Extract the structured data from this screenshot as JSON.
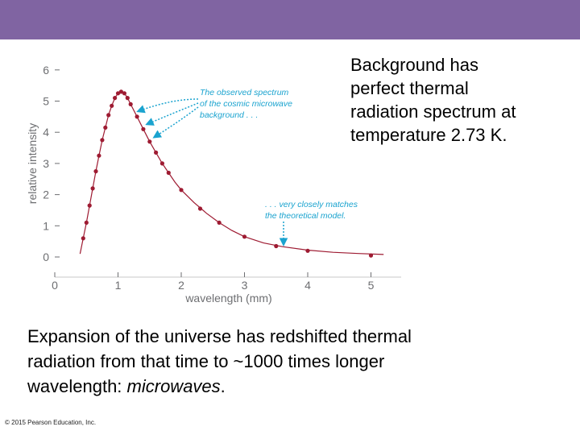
{
  "header": {
    "bar_color": "#8064a2"
  },
  "side_text": {
    "lines": [
      "Background has",
      "perfect thermal",
      "radiation spectrum at",
      "temperature 2.73 K."
    ]
  },
  "bottom_text": {
    "line1": "Expansion of the universe has redshifted thermal",
    "line2": "radiation from that time to ~1000 times longer",
    "line3_start": "wavelength: ",
    "line3_em": "microwaves",
    "line3_end": "."
  },
  "footer": {
    "copyright": "© 2015 Pearson Education, Inc."
  },
  "chart_data": {
    "type": "scatter",
    "xlabel": "wavelength (mm)",
    "ylabel": "relative intensity",
    "xlim": [
      0,
      5.5
    ],
    "ylim": [
      0,
      6
    ],
    "x_ticks": [
      "0",
      "1",
      "2",
      "3",
      "4",
      "5"
    ],
    "y_ticks": [
      "0",
      "1",
      "2",
      "3",
      "4",
      "5",
      "6"
    ],
    "grid": false,
    "annotations": {
      "observed": [
        "The observed spectrum",
        "of the cosmic microwave",
        "background . . ."
      ],
      "model": [
        ". . . very closely matches",
        "the theoretical model."
      ]
    },
    "series": [
      {
        "kind": "curve",
        "color": "#9e1b32",
        "x": [
          0.4,
          0.45,
          0.5,
          0.55,
          0.6,
          0.65,
          0.7,
          0.75,
          0.8,
          0.85,
          0.9,
          0.95,
          1.0,
          1.05,
          1.1,
          1.15,
          1.2,
          1.3,
          1.4,
          1.5,
          1.6,
          1.7,
          1.8,
          1.9,
          2.0,
          2.2,
          2.4,
          2.6,
          2.8,
          3.0,
          3.3,
          3.6,
          4.0,
          4.4,
          4.8,
          5.2
        ],
        "y": [
          0.1,
          0.6,
          1.1,
          1.65,
          2.2,
          2.75,
          3.25,
          3.75,
          4.15,
          4.55,
          4.85,
          5.1,
          5.25,
          5.3,
          5.25,
          5.1,
          4.9,
          4.5,
          4.1,
          3.7,
          3.35,
          3.0,
          2.7,
          2.4,
          2.15,
          1.75,
          1.4,
          1.1,
          0.85,
          0.65,
          0.45,
          0.33,
          0.22,
          0.15,
          0.11,
          0.08
        ]
      },
      {
        "kind": "points",
        "name": "observed",
        "color": "#9e1b32",
        "x": [
          0.45,
          0.5,
          0.55,
          0.6,
          0.65,
          0.7,
          0.75,
          0.8,
          0.85,
          0.9,
          0.95,
          1.0,
          1.05,
          1.1,
          1.15,
          1.2,
          1.3,
          1.4,
          1.5,
          1.6,
          1.7,
          1.8,
          2.0,
          2.3,
          2.6,
          3.0,
          3.5,
          4.0,
          5.0
        ],
        "y": [
          0.6,
          1.1,
          1.65,
          2.2,
          2.75,
          3.25,
          3.75,
          4.15,
          4.55,
          4.85,
          5.1,
          5.25,
          5.3,
          5.25,
          5.1,
          4.9,
          4.5,
          4.1,
          3.7,
          3.35,
          3.0,
          2.7,
          2.15,
          1.55,
          1.1,
          0.65,
          0.35,
          0.2,
          0.05
        ]
      }
    ]
  }
}
